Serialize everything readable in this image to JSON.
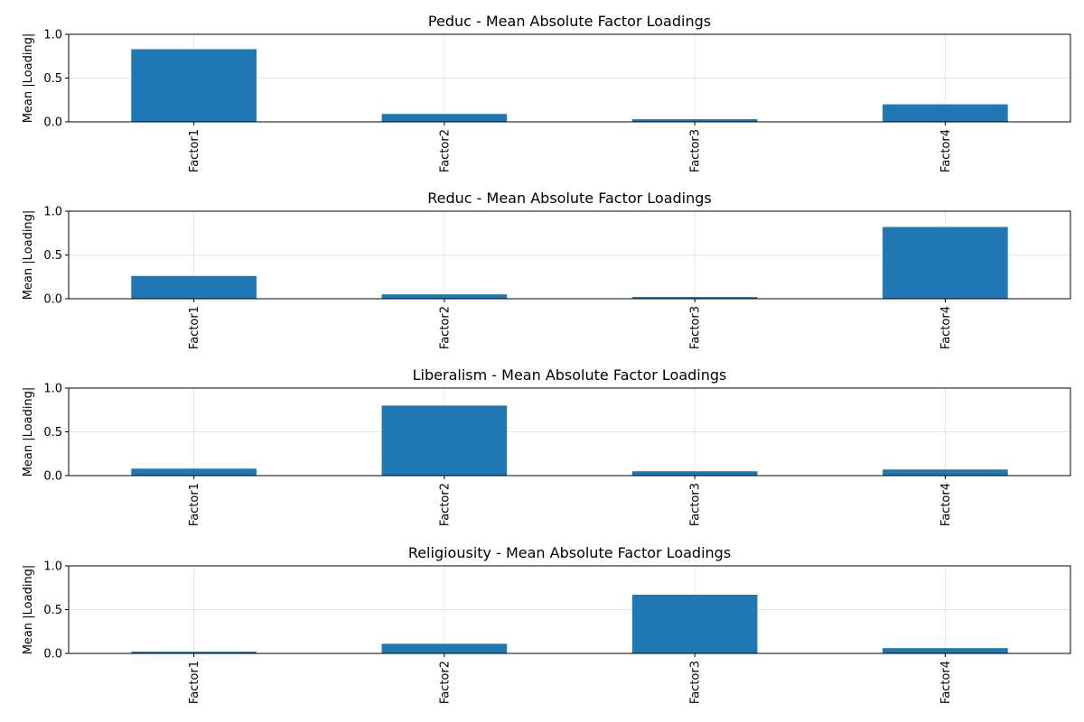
{
  "chart_data": [
    {
      "type": "bar",
      "title": "Peduc - Mean Absolute Factor Loadings",
      "ylabel": "Mean |Loading|",
      "categories": [
        "Factor1",
        "Factor2",
        "Factor3",
        "Factor4"
      ],
      "values": [
        0.83,
        0.09,
        0.03,
        0.2
      ],
      "ylim": [
        0,
        1.0
      ],
      "yticks": [
        0.0,
        0.5,
        1.0
      ],
      "ytick_labels": [
        "0.0",
        "0.5",
        "1.0"
      ],
      "grid": true,
      "color": "#1f77b4"
    },
    {
      "type": "bar",
      "title": "Reduc - Mean Absolute Factor Loadings",
      "ylabel": "Mean |Loading|",
      "categories": [
        "Factor1",
        "Factor2",
        "Factor3",
        "Factor4"
      ],
      "values": [
        0.26,
        0.05,
        0.02,
        0.82
      ],
      "ylim": [
        0,
        1.0
      ],
      "yticks": [
        0.0,
        0.5,
        1.0
      ],
      "ytick_labels": [
        "0.0",
        "0.5",
        "1.0"
      ],
      "grid": true,
      "color": "#1f77b4"
    },
    {
      "type": "bar",
      "title": "Liberalism - Mean Absolute Factor Loadings",
      "ylabel": "Mean |Loading|",
      "categories": [
        "Factor1",
        "Factor2",
        "Factor3",
        "Factor4"
      ],
      "values": [
        0.08,
        0.8,
        0.05,
        0.07
      ],
      "ylim": [
        0,
        1.0
      ],
      "yticks": [
        0.0,
        0.5,
        1.0
      ],
      "ytick_labels": [
        "0.0",
        "0.5",
        "1.0"
      ],
      "grid": true,
      "color": "#1f77b4"
    },
    {
      "type": "bar",
      "title": "Religiousity - Mean Absolute Factor Loadings",
      "ylabel": "Mean |Loading|",
      "categories": [
        "Factor1",
        "Factor2",
        "Factor3",
        "Factor4"
      ],
      "values": [
        0.02,
        0.11,
        0.67,
        0.06
      ],
      "ylim": [
        0,
        1.0
      ],
      "yticks": [
        0.0,
        0.5,
        1.0
      ],
      "ytick_labels": [
        "0.0",
        "0.5",
        "1.0"
      ],
      "grid": true,
      "color": "#1f77b4"
    }
  ]
}
